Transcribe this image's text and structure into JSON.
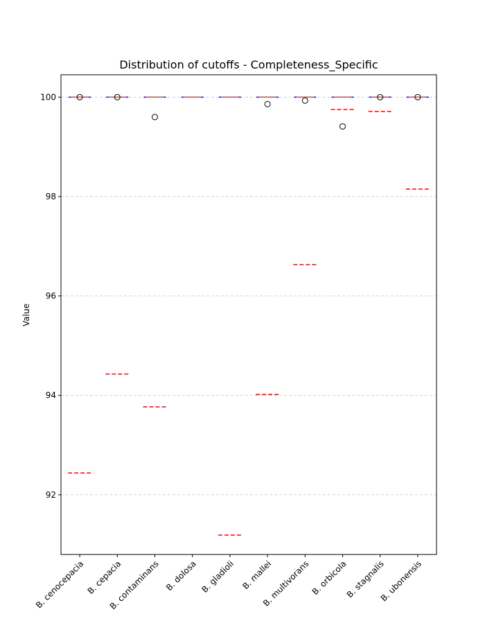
{
  "chart_data": {
    "type": "box",
    "title": "Distribution of cutoffs - Completeness_Specific",
    "xlabel": "",
    "ylabel": "Value",
    "ylim": [
      90.8,
      100.45
    ],
    "yticks": [
      92,
      94,
      96,
      98,
      100
    ],
    "grid": "horizontal dashed",
    "categories": [
      "B. cenocepacia",
      "B. cepacia",
      "B. contaminans",
      "B. dolosa",
      "B. gladioli",
      "B. mallei",
      "B. multivorans",
      "B. orbicola",
      "B. stagnalis",
      "B. ubonensis"
    ],
    "box_median": [
      100,
      100,
      100,
      100,
      100,
      100,
      100,
      100,
      100,
      100
    ],
    "outliers": [
      [
        100.0
      ],
      [
        100.0
      ],
      [
        99.6
      ],
      [],
      [],
      [
        99.86
      ],
      [
        99.93
      ],
      [
        99.41
      ],
      [
        100.0
      ],
      [
        100.0
      ]
    ],
    "cutoffs": [
      92.44,
      94.43,
      93.77,
      null,
      91.19,
      94.02,
      96.63,
      99.75,
      99.71,
      98.15
    ],
    "colors": {
      "cutoff": "#ff0000",
      "median": "#ff7f0e",
      "box": "#0000ff",
      "grid": "#cccccc"
    }
  }
}
